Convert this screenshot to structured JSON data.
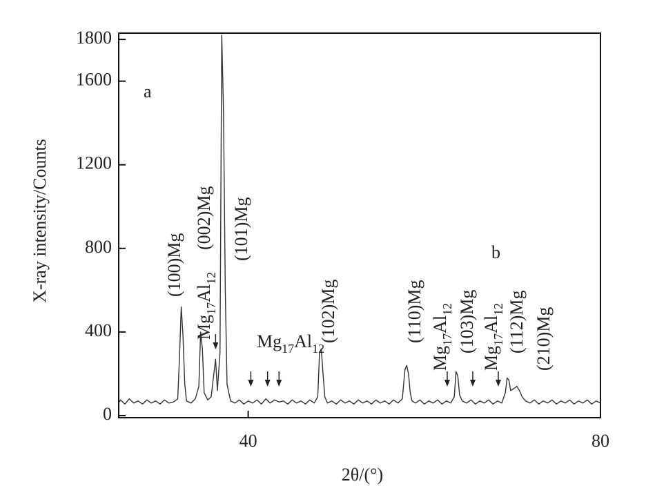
{
  "chart_data": {
    "type": "line",
    "ylabel": "X-ray intensity/Counts",
    "xlabel": "2θ/(°)",
    "xlim": [
      25.3,
      80
    ],
    "ylim": [
      -10,
      1830
    ],
    "xticks": [
      40,
      80
    ],
    "yticks": [
      0,
      400,
      800,
      1200,
      1600,
      1800
    ],
    "x": [
      25.3,
      25.5,
      26,
      26.5,
      27,
      27.5,
      28,
      28.5,
      29,
      29.5,
      30,
      30.5,
      31,
      31.5,
      32,
      32.2,
      32.4,
      32.6,
      32.8,
      33,
      33.5,
      34,
      34.4,
      34.6,
      34.8,
      35,
      35.4,
      35.8,
      36.1,
      36.3,
      36.5,
      36.8,
      37,
      37.2,
      37.4,
      37.6,
      38,
      38.5,
      39,
      39.5,
      40,
      40.5,
      41,
      41.5,
      42,
      42.5,
      43,
      43.5,
      44,
      44.5,
      45,
      45.5,
      46,
      46.5,
      47,
      47.5,
      47.9,
      48.1,
      48.3,
      48.5,
      48.7,
      49,
      49.5,
      50,
      50.5,
      51,
      51.5,
      52,
      52.5,
      53,
      53.5,
      54,
      54.5,
      55,
      55.5,
      56,
      56.5,
      57,
      57.5,
      57.8,
      58,
      58.2,
      58.4,
      58.6,
      59,
      59.5,
      60,
      60.5,
      61,
      61.5,
      62,
      62.5,
      63,
      63.4,
      63.6,
      63.8,
      64,
      64.3,
      64.8,
      65.3,
      65.8,
      66.3,
      66.8,
      67.3,
      67.8,
      68.3,
      68.8,
      69.2,
      69.4,
      69.6,
      69.8,
      70.2,
      70.5,
      70.8,
      71.1,
      71.5,
      72,
      72.5,
      73,
      73.5,
      74,
      74.5,
      75,
      75.5,
      76,
      76.5,
      77,
      77.5,
      78,
      78.5,
      79,
      79.5,
      80
    ],
    "series": [
      {
        "color": "#333333",
        "values": [
          60,
          75,
          55,
          80,
          60,
          70,
          55,
          75,
          60,
          70,
          55,
          75,
          60,
          65,
          80,
          280,
          520,
          380,
          150,
          70,
          60,
          80,
          140,
          400,
          320,
          110,
          75,
          90,
          200,
          270,
          120,
          300,
          1820,
          1450,
          600,
          150,
          70,
          60,
          75,
          55,
          70,
          60,
          75,
          55,
          80,
          60,
          75,
          65,
          70,
          55,
          75,
          60,
          70,
          55,
          75,
          60,
          90,
          300,
          320,
          200,
          90,
          60,
          70,
          55,
          75,
          60,
          70,
          55,
          75,
          60,
          70,
          55,
          75,
          60,
          70,
          55,
          75,
          60,
          80,
          220,
          240,
          200,
          110,
          70,
          60,
          75,
          55,
          70,
          60,
          75,
          55,
          70,
          60,
          90,
          210,
          190,
          100,
          70,
          60,
          75,
          55,
          70,
          60,
          75,
          55,
          70,
          60,
          110,
          180,
          170,
          120,
          130,
          140,
          120,
          90,
          70,
          60,
          75,
          55,
          70,
          60,
          75,
          55,
          70,
          60,
          75,
          55,
          70,
          60,
          75,
          55,
          70,
          60
        ]
      }
    ],
    "arrows": [
      36.3,
      40.3,
      42.2,
      43.5,
      62.6,
      65.5,
      68.4
    ],
    "annotations": [
      "a",
      "(100)Mg",
      "Mg17Al12",
      "(002)Mg",
      "(101)Mg",
      "Mg17Al12",
      "(102)Mg",
      "(110)Mg",
      "Mg17Al12",
      "(103)Mg",
      "b",
      "Mg17Al12",
      "(112)Mg",
      "(210)Mg"
    ]
  }
}
